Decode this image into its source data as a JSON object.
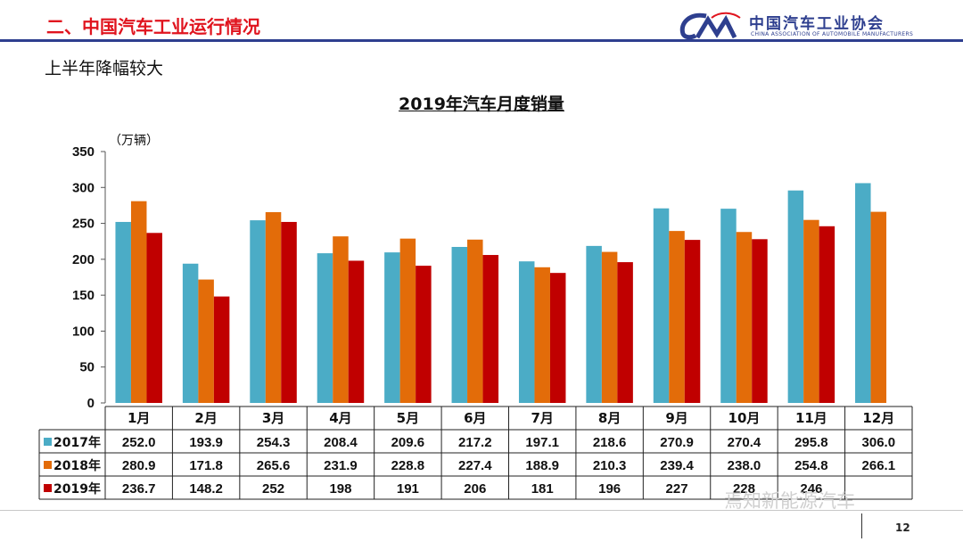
{
  "header": {
    "title": "二、中国汽车工业运行情况"
  },
  "logo": {
    "cn": "中国汽车工业协会",
    "en": "CHINA ASSOCIATION OF AUTOMOBILE MANUFACTURERS"
  },
  "subtitle": "上半年降幅较大",
  "watermark": "焉知新能源汽车",
  "page_number": "12",
  "chart_data": {
    "type": "bar",
    "title": "2019年汽车月度销量",
    "unit_label": "（万辆）",
    "categories": [
      "1月",
      "2月",
      "3月",
      "4月",
      "5月",
      "6月",
      "7月",
      "8月",
      "9月",
      "10月",
      "11月",
      "12月"
    ],
    "yticks": [
      0,
      50,
      100,
      150,
      200,
      250,
      300,
      350
    ],
    "ylim": [
      0,
      350
    ],
    "series": [
      {
        "name": "2017年",
        "color": "#4bacc6",
        "values": [
          252.0,
          193.9,
          254.3,
          208.4,
          209.6,
          217.2,
          197.1,
          218.6,
          270.9,
          270.4,
          295.8,
          306.0
        ],
        "labels": [
          "252.0",
          "193.9",
          "254.3",
          "208.4",
          "209.6",
          "217.2",
          "197.1",
          "218.6",
          "270.9",
          "270.4",
          "295.8",
          "306.0"
        ]
      },
      {
        "name": "2018年",
        "color": "#e36c09",
        "values": [
          280.9,
          171.8,
          265.6,
          231.9,
          228.8,
          227.4,
          188.9,
          210.3,
          239.4,
          238.0,
          254.8,
          266.1
        ],
        "labels": [
          "280.9",
          "171.8",
          "265.6",
          "231.9",
          "228.8",
          "227.4",
          "188.9",
          "210.3",
          "239.4",
          "238.0",
          "254.8",
          "266.1"
        ]
      },
      {
        "name": "2019年",
        "color": "#c00000",
        "values": [
          236.7,
          148.2,
          252,
          198,
          191,
          206,
          181,
          196,
          227,
          228,
          246,
          null
        ],
        "labels": [
          "236.7",
          "148.2",
          "252",
          "198",
          "191",
          "206",
          "181",
          "196",
          "227",
          "228",
          "246",
          ""
        ]
      }
    ],
    "legend": "data-table"
  }
}
